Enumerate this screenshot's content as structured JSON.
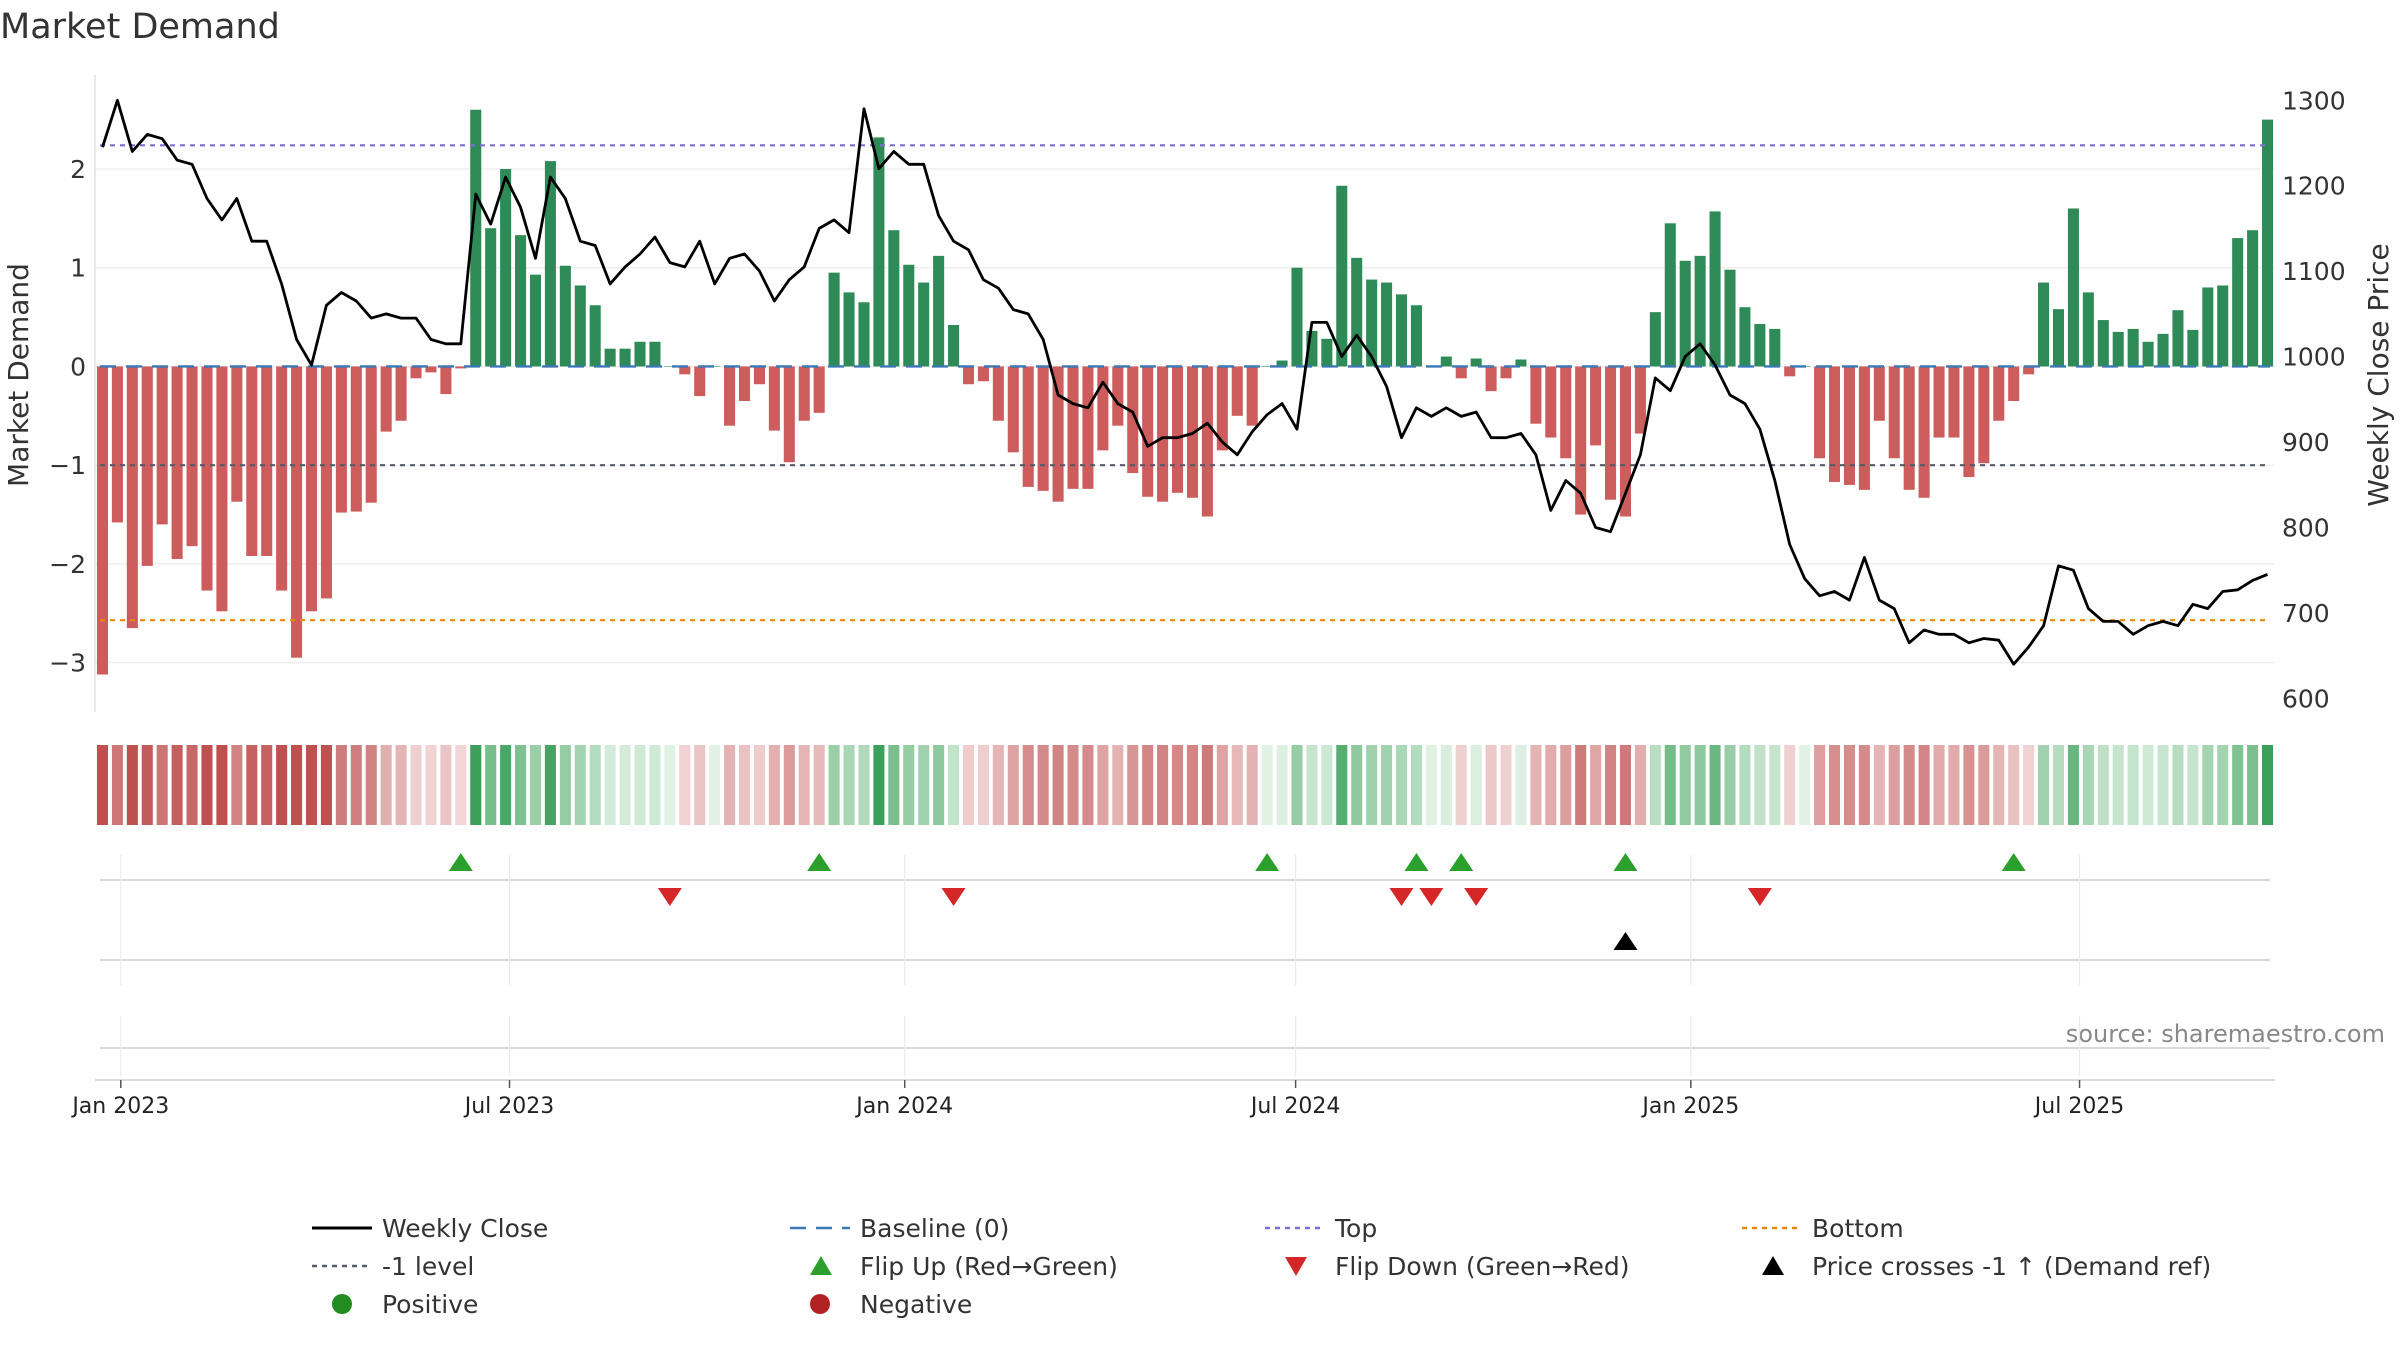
{
  "chart_data": {
    "type": "bar",
    "title": "Market Demand",
    "ylabel_left": "Market Demand",
    "ylabel_right": "Weekly Close Price",
    "source": "source: sharemaestro.com",
    "x_ticks": [
      "Jan 2023",
      "Jul 2023",
      "Jan 2024",
      "Jul 2024",
      "Jan 2025",
      "Jul 2025"
    ],
    "left_ylim": [
      -3.5,
      2.8
    ],
    "left_ticks": [
      "2",
      "1",
      "0",
      "−1",
      "−2",
      "−3"
    ],
    "left_tick_values": [
      2,
      1,
      0,
      -1,
      -2,
      -3
    ],
    "right_ylim": [
      600,
      1300
    ],
    "right_ticks": [
      "1300",
      "1200",
      "1100",
      "1000",
      "900",
      "800",
      "700",
      "600"
    ],
    "right_tick_values": [
      1300,
      1200,
      1100,
      1000,
      900,
      800,
      700,
      600
    ],
    "levels": {
      "top": 2.24,
      "bottom": -2.57,
      "minus_one": -1,
      "baseline": 0
    },
    "colors": {
      "positive": "#2e8b57",
      "negative": "#cd5c5c",
      "price": "#000000",
      "top": "#7b6fd6",
      "bottom": "#e8890c",
      "minus_one": "#555a6b",
      "baseline": "#3a78b5",
      "flip_up": "#2ca02c",
      "flip_down": "#d62728",
      "cross": "#000000"
    },
    "n_weeks": 146,
    "week_span_days": 1015,
    "demand_keyframes": [
      [
        0,
        -3.12
      ],
      [
        1,
        -1.58
      ],
      [
        2,
        -2.65
      ],
      [
        3,
        -2.02
      ],
      [
        4,
        -1.6
      ],
      [
        5,
        -1.95
      ],
      [
        6,
        -1.82
      ],
      [
        7,
        -2.27
      ],
      [
        8,
        -2.48
      ],
      [
        9,
        -1.37
      ],
      [
        10,
        -1.92
      ],
      [
        11,
        -1.92
      ],
      [
        12,
        -2.27
      ],
      [
        13,
        -2.95
      ],
      [
        14,
        -2.48
      ],
      [
        15,
        -2.35
      ],
      [
        16,
        -1.48
      ],
      [
        17,
        -1.47
      ],
      [
        18,
        -1.38
      ],
      [
        19,
        -0.66
      ],
      [
        20,
        -0.55
      ],
      [
        21,
        -0.12
      ],
      [
        22,
        -0.06
      ],
      [
        23,
        -0.28
      ],
      [
        24,
        -0.02
      ],
      [
        25,
        2.6
      ],
      [
        26,
        1.4
      ],
      [
        27,
        2.0
      ],
      [
        28,
        1.33
      ],
      [
        29,
        0.93
      ],
      [
        30,
        2.08
      ],
      [
        31,
        1.02
      ],
      [
        32,
        0.82
      ],
      [
        33,
        0.62
      ],
      [
        34,
        0.18
      ],
      [
        35,
        0.18
      ],
      [
        36,
        0.25
      ],
      [
        37,
        0.25
      ],
      [
        38,
        0.0
      ],
      [
        39,
        -0.08
      ],
      [
        40,
        -0.3
      ],
      [
        41,
        0.0
      ],
      [
        42,
        -0.6
      ],
      [
        43,
        -0.35
      ],
      [
        44,
        -0.18
      ],
      [
        45,
        -0.65
      ],
      [
        46,
        -0.97
      ],
      [
        47,
        -0.55
      ],
      [
        48,
        -0.47
      ],
      [
        49,
        0.95
      ],
      [
        50,
        0.75
      ],
      [
        51,
        0.65
      ],
      [
        52,
        2.32
      ],
      [
        53,
        1.38
      ],
      [
        54,
        1.03
      ],
      [
        55,
        0.85
      ],
      [
        56,
        1.12
      ],
      [
        57,
        0.42
      ],
      [
        58,
        -0.18
      ],
      [
        59,
        -0.15
      ],
      [
        60,
        -0.55
      ],
      [
        61,
        -0.87
      ],
      [
        62,
        -1.22
      ],
      [
        63,
        -1.26
      ],
      [
        64,
        -1.37
      ],
      [
        65,
        -1.24
      ],
      [
        66,
        -1.24
      ],
      [
        67,
        -0.85
      ],
      [
        68,
        -0.6
      ],
      [
        69,
        -1.08
      ],
      [
        70,
        -1.32
      ],
      [
        71,
        -1.37
      ],
      [
        72,
        -1.28
      ],
      [
        73,
        -1.33
      ],
      [
        74,
        -1.52
      ],
      [
        75,
        -0.85
      ],
      [
        76,
        -0.5
      ],
      [
        77,
        -0.6
      ],
      [
        78,
        0.0
      ],
      [
        79,
        0.06
      ],
      [
        80,
        1.0
      ],
      [
        81,
        0.36
      ],
      [
        82,
        0.28
      ],
      [
        83,
        1.83
      ],
      [
        84,
        1.1
      ],
      [
        85,
        0.88
      ],
      [
        86,
        0.85
      ],
      [
        87,
        0.73
      ],
      [
        88,
        0.62
      ],
      [
        89,
        0.0
      ],
      [
        90,
        0.1
      ],
      [
        91,
        -0.12
      ],
      [
        92,
        0.08
      ],
      [
        93,
        -0.25
      ],
      [
        94,
        -0.12
      ],
      [
        95,
        0.07
      ],
      [
        96,
        -0.58
      ],
      [
        97,
        -0.72
      ],
      [
        98,
        -0.93
      ],
      [
        99,
        -1.5
      ],
      [
        100,
        -0.8
      ],
      [
        101,
        -1.35
      ],
      [
        102,
        -1.52
      ],
      [
        103,
        -0.68
      ],
      [
        104,
        0.55
      ],
      [
        105,
        1.45
      ],
      [
        106,
        1.07
      ],
      [
        107,
        1.12
      ],
      [
        108,
        1.57
      ],
      [
        109,
        0.98
      ],
      [
        110,
        0.6
      ],
      [
        111,
        0.43
      ],
      [
        112,
        0.38
      ],
      [
        113,
        -0.1
      ],
      [
        114,
        0.0
      ],
      [
        115,
        -0.93
      ],
      [
        116,
        -1.17
      ],
      [
        117,
        -1.2
      ],
      [
        118,
        -1.25
      ],
      [
        119,
        -0.55
      ],
      [
        120,
        -0.93
      ],
      [
        121,
        -1.25
      ],
      [
        122,
        -1.33
      ],
      [
        123,
        -0.72
      ],
      [
        124,
        -0.72
      ],
      [
        125,
        -1.12
      ],
      [
        126,
        -0.98
      ],
      [
        127,
        -0.55
      ],
      [
        128,
        -0.35
      ],
      [
        129,
        -0.08
      ],
      [
        130,
        0.85
      ],
      [
        131,
        0.58
      ],
      [
        132,
        1.6
      ],
      [
        133,
        0.75
      ],
      [
        134,
        0.47
      ],
      [
        135,
        0.35
      ],
      [
        136,
        0.38
      ],
      [
        137,
        0.25
      ],
      [
        138,
        0.33
      ],
      [
        139,
        0.57
      ],
      [
        140,
        0.37
      ],
      [
        141,
        0.8
      ],
      [
        142,
        0.82
      ],
      [
        143,
        1.3
      ],
      [
        144,
        1.38
      ],
      [
        145,
        2.5
      ]
    ],
    "price_keyframes": [
      [
        0,
        1245
      ],
      [
        1,
        1300
      ],
      [
        2,
        1240
      ],
      [
        3,
        1260
      ],
      [
        4,
        1255
      ],
      [
        5,
        1230
      ],
      [
        6,
        1225
      ],
      [
        7,
        1185
      ],
      [
        8,
        1160
      ],
      [
        9,
        1185
      ],
      [
        10,
        1135
      ],
      [
        11,
        1135
      ],
      [
        12,
        1085
      ],
      [
        13,
        1020
      ],
      [
        14,
        990
      ],
      [
        15,
        1060
      ],
      [
        16,
        1075
      ],
      [
        17,
        1065
      ],
      [
        18,
        1045
      ],
      [
        19,
        1050
      ],
      [
        20,
        1045
      ],
      [
        21,
        1045
      ],
      [
        22,
        1020
      ],
      [
        23,
        1015
      ],
      [
        24,
        1015
      ],
      [
        25,
        1190
      ],
      [
        26,
        1155
      ],
      [
        27,
        1210
      ],
      [
        28,
        1175
      ],
      [
        29,
        1115
      ],
      [
        30,
        1210
      ],
      [
        31,
        1185
      ],
      [
        32,
        1135
      ],
      [
        33,
        1130
      ],
      [
        34,
        1085
      ],
      [
        35,
        1105
      ],
      [
        36,
        1120
      ],
      [
        37,
        1140
      ],
      [
        38,
        1110
      ],
      [
        39,
        1105
      ],
      [
        40,
        1135
      ],
      [
        41,
        1085
      ],
      [
        42,
        1115
      ],
      [
        43,
        1120
      ],
      [
        44,
        1100
      ],
      [
        45,
        1065
      ],
      [
        46,
        1090
      ],
      [
        47,
        1105
      ],
      [
        48,
        1150
      ],
      [
        49,
        1160
      ],
      [
        50,
        1145
      ],
      [
        51,
        1290
      ],
      [
        52,
        1220
      ],
      [
        53,
        1240
      ],
      [
        54,
        1225
      ],
      [
        55,
        1225
      ],
      [
        56,
        1165
      ],
      [
        57,
        1135
      ],
      [
        58,
        1125
      ],
      [
        59,
        1090
      ],
      [
        60,
        1080
      ],
      [
        61,
        1055
      ],
      [
        62,
        1050
      ],
      [
        63,
        1020
      ],
      [
        64,
        955
      ],
      [
        65,
        945
      ],
      [
        66,
        940
      ],
      [
        67,
        970
      ],
      [
        68,
        945
      ],
      [
        69,
        935
      ],
      [
        70,
        895
      ],
      [
        71,
        905
      ],
      [
        72,
        905
      ],
      [
        73,
        910
      ],
      [
        74,
        922
      ],
      [
        75,
        900
      ],
      [
        76,
        885
      ],
      [
        77,
        912
      ],
      [
        78,
        932
      ],
      [
        79,
        945
      ],
      [
        80,
        915
      ],
      [
        81,
        1040
      ],
      [
        82,
        1040
      ],
      [
        83,
        1000
      ],
      [
        84,
        1025
      ],
      [
        85,
        1000
      ],
      [
        86,
        965
      ],
      [
        87,
        905
      ],
      [
        88,
        940
      ],
      [
        89,
        930
      ],
      [
        90,
        940
      ],
      [
        91,
        930
      ],
      [
        92,
        935
      ],
      [
        93,
        905
      ],
      [
        94,
        905
      ],
      [
        95,
        910
      ],
      [
        96,
        885
      ],
      [
        97,
        820
      ],
      [
        98,
        855
      ],
      [
        99,
        840
      ],
      [
        100,
        800
      ],
      [
        101,
        795
      ],
      [
        102,
        840
      ],
      [
        103,
        885
      ],
      [
        104,
        975
      ],
      [
        105,
        960
      ],
      [
        106,
        1000
      ],
      [
        107,
        1015
      ],
      [
        108,
        990
      ],
      [
        109,
        955
      ],
      [
        110,
        945
      ],
      [
        111,
        915
      ],
      [
        112,
        855
      ],
      [
        113,
        780
      ],
      [
        114,
        740
      ],
      [
        115,
        720
      ],
      [
        116,
        725
      ],
      [
        117,
        715
      ],
      [
        118,
        765
      ],
      [
        119,
        715
      ],
      [
        120,
        705
      ],
      [
        121,
        665
      ],
      [
        122,
        680
      ],
      [
        123,
        675
      ],
      [
        124,
        675
      ],
      [
        125,
        665
      ],
      [
        126,
        670
      ],
      [
        127,
        668
      ],
      [
        128,
        640
      ],
      [
        129,
        660
      ],
      [
        130,
        685
      ],
      [
        131,
        755
      ],
      [
        132,
        750
      ],
      [
        133,
        705
      ],
      [
        134,
        690
      ],
      [
        135,
        690
      ],
      [
        136,
        675
      ],
      [
        137,
        685
      ],
      [
        138,
        690
      ],
      [
        139,
        685
      ],
      [
        140,
        710
      ],
      [
        141,
        705
      ],
      [
        142,
        725
      ],
      [
        143,
        727
      ],
      [
        144,
        738
      ],
      [
        145,
        745
      ]
    ],
    "flip_up_weeks": [
      24,
      48,
      78,
      88,
      91,
      102,
      128
    ],
    "flip_down_weeks": [
      38,
      57,
      87,
      89,
      92,
      111
    ],
    "price_cross_weeks": [
      102
    ],
    "legend": [
      {
        "label": "Weekly Close",
        "symbol": "line",
        "color": "#000000"
      },
      {
        "label": "Baseline (0)",
        "symbol": "dash",
        "color": "#3a78b5"
      },
      {
        "label": "Top",
        "symbol": "dot",
        "color": "#7b6fd6"
      },
      {
        "label": "Bottom",
        "symbol": "dot",
        "color": "#e8890c"
      },
      {
        "label": "-1 level",
        "symbol": "dot",
        "color": "#555a6b"
      },
      {
        "label": "Flip Up (Red→Green)",
        "symbol": "tri-up",
        "color": "#2ca02c"
      },
      {
        "label": "Flip Down (Green→Red)",
        "symbol": "tri-down",
        "color": "#d62728"
      },
      {
        "label": "Price crosses -1 ↑ (Demand ref)",
        "symbol": "tri-up",
        "color": "#000000"
      },
      {
        "label": "Positive",
        "symbol": "circle",
        "color": "#228b22"
      },
      {
        "label": "Negative",
        "symbol": "circle",
        "color": "#b22222"
      }
    ]
  }
}
